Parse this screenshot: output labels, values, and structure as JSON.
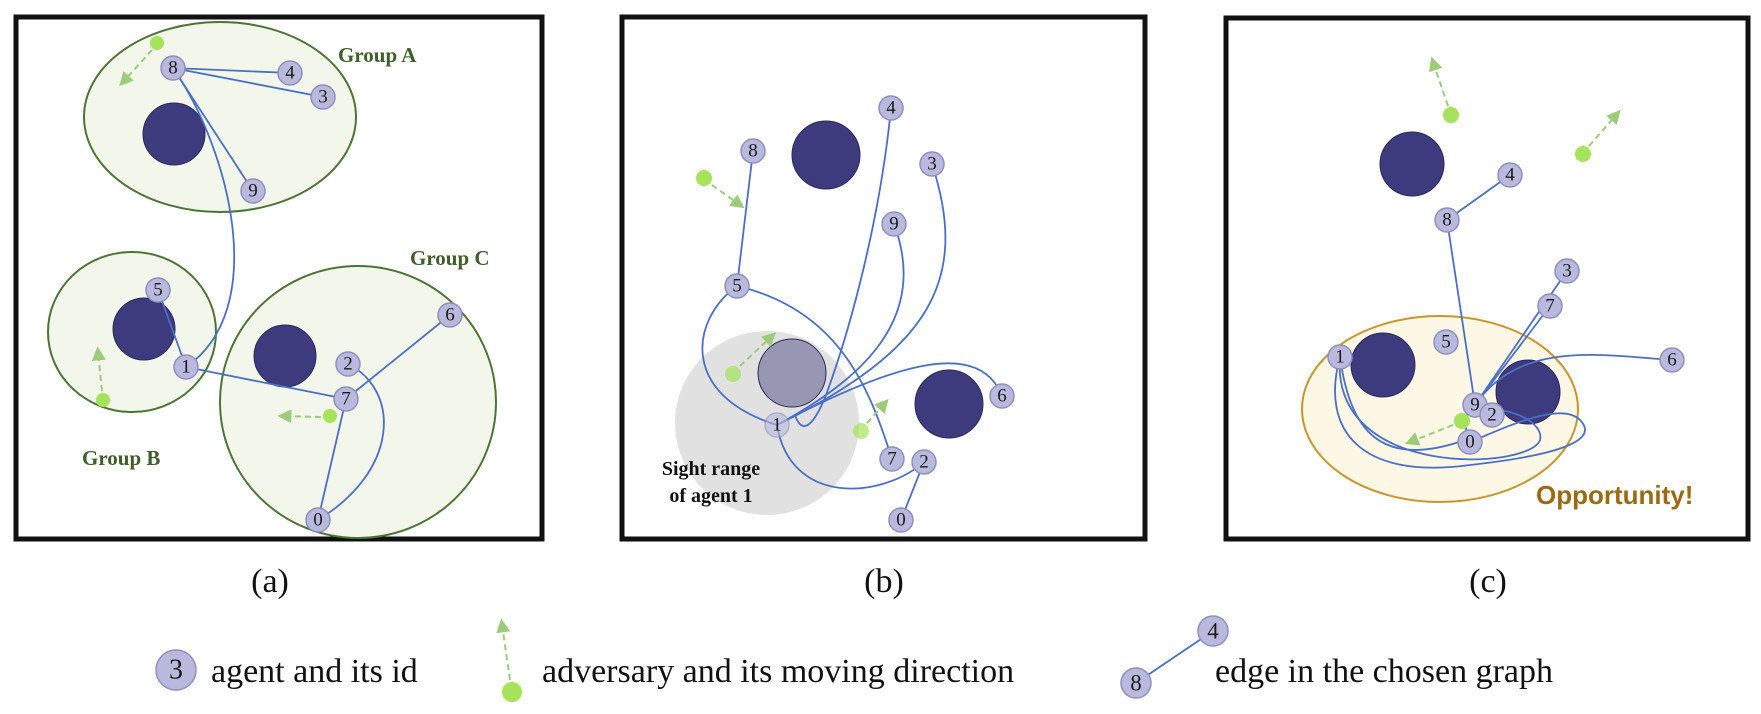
{
  "captions": {
    "a": "(a)",
    "b": "(b)",
    "c": "(c)"
  },
  "panel_a": {
    "groups": [
      "Group A",
      "Group B",
      "Group C"
    ],
    "agents": [
      "8",
      "4",
      "3",
      "9",
      "5",
      "1",
      "2",
      "7",
      "6",
      "0"
    ]
  },
  "panel_b": {
    "sight_label": [
      "Sight range",
      "of agent 1"
    ],
    "agents": [
      "8",
      "4",
      "3",
      "9",
      "5",
      "1",
      "6",
      "7",
      "2",
      "0"
    ]
  },
  "panel_c": {
    "opportunity": "Opportunity!",
    "agents": [
      "4",
      "8",
      "3",
      "7",
      "5",
      "1",
      "6",
      "9",
      "2",
      "0"
    ]
  },
  "legend": {
    "agent_id": "3",
    "agent_text": "agent and its id",
    "adversary_text": "adversary and its moving direction",
    "edge_ids": [
      "4",
      "8"
    ],
    "edge_text": "edge in the chosen graph"
  },
  "colors": {
    "agent": "#b9b9dd",
    "obstacle": "#3d3b7d",
    "adversary": "#a4e35a",
    "edge": "#4a6fc4",
    "group_outline": "#4b7535",
    "opportunity_outline": "#c8962a"
  }
}
